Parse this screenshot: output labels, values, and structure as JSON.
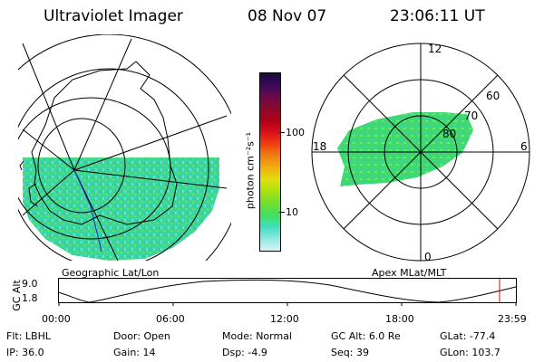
{
  "header": {
    "instrument": "Ultraviolet Imager",
    "date": "08 Nov 07",
    "time": "23:06:11 UT"
  },
  "left_panel": {
    "caption": "Geographic Lat/Lon"
  },
  "right_panel": {
    "caption": "Apex MLat/MLT",
    "mlt_labels": {
      "top": "12",
      "left": "18",
      "right": "6",
      "bottom": "0"
    },
    "lat_labels": [
      "60",
      "70",
      "80"
    ]
  },
  "colorbar": {
    "unit_label": "photon cm⁻²s⁻¹",
    "ticks": [
      "100",
      "10"
    ],
    "colors": [
      "#1a0a3c",
      "#3a0a5a",
      "#6a0a4a",
      "#8a0a2a",
      "#b00018",
      "#d8101a",
      "#f04010",
      "#f08010",
      "#f0b010",
      "#e0e010",
      "#a8e010",
      "#70e030",
      "#40e060",
      "#40e0c0",
      "#90e8e0",
      "#d8f4f0"
    ]
  },
  "timeline": {
    "axis_label": "GC Alt",
    "y_ticks": [
      "9.0",
      "1.8"
    ],
    "x_ticks": [
      "00:00",
      "06:00",
      "12:00",
      "18:00",
      "23:59"
    ],
    "marker_color": "#e00000",
    "curve_color": "#000000"
  },
  "status": {
    "row1": [
      {
        "label": "Flt:",
        "value": "LBHL"
      },
      {
        "label": "Door:",
        "value": "Open"
      },
      {
        "label": "Mode:",
        "value": "Normal"
      },
      {
        "label": "GC Alt:",
        "value": "6.0 Re"
      },
      {
        "label": "GLat:",
        "value": "-77.4"
      }
    ],
    "row2": [
      {
        "label": "IP:",
        "value": "36.0"
      },
      {
        "label": "Gain:",
        "value": "14"
      },
      {
        "label": "Dsp:",
        "value": "-4.9"
      },
      {
        "label": "Seq:",
        "value": "39"
      },
      {
        "label": "GLon:",
        "value": "103.7"
      }
    ]
  },
  "colors": {
    "aurora_main": "#3ad6a0",
    "aurora_green": "#5ee060",
    "aurora_cyan": "#40d8c8"
  }
}
